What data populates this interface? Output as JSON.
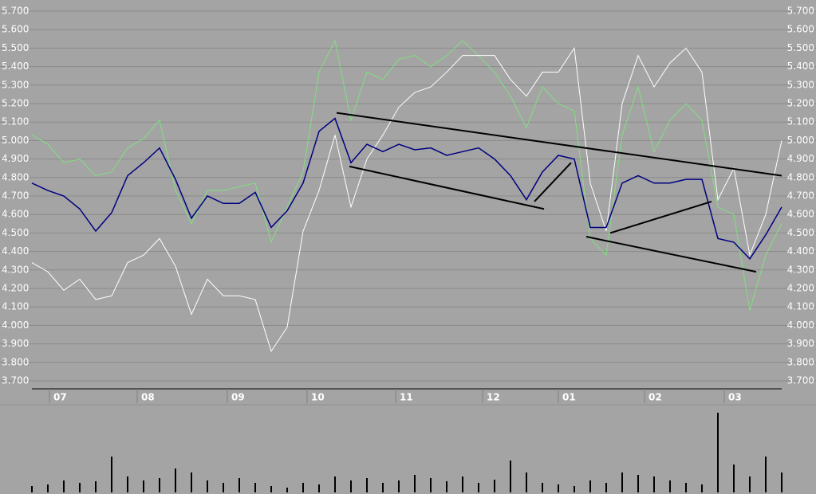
{
  "chart_data": {
    "type": "line",
    "x": [
      0,
      1,
      2,
      3,
      4,
      5,
      6,
      7,
      8,
      9,
      10,
      11,
      12,
      13,
      14,
      15,
      16,
      17,
      18,
      19,
      20,
      21,
      22,
      23,
      24,
      25,
      26,
      27,
      28,
      29,
      30,
      31,
      32,
      33,
      34,
      35,
      36,
      37,
      38,
      39,
      40,
      41,
      42,
      43,
      44,
      45,
      46,
      47
    ],
    "series": [
      {
        "color": "#80e080",
        "values": [
          5.03,
          4.98,
          4.88,
          4.9,
          4.81,
          4.83,
          4.96,
          5.01,
          5.11,
          4.73,
          4.55,
          4.73,
          4.73,
          4.75,
          4.77,
          4.45,
          4.64,
          4.83,
          5.37,
          5.54,
          5.11,
          5.37,
          5.33,
          5.44,
          5.46,
          5.4,
          5.46,
          5.54,
          5.46,
          5.37,
          5.24,
          5.07,
          5.29,
          5.2,
          5.16,
          4.47,
          4.38,
          5.03,
          5.29,
          4.94,
          5.11,
          5.2,
          5.11,
          4.64,
          4.6,
          4.08,
          4.38,
          4.55
        ]
      },
      {
        "color": "#ffffff",
        "values": [
          4.34,
          4.29,
          4.19,
          4.25,
          4.14,
          4.16,
          4.34,
          4.38,
          4.47,
          4.32,
          4.06,
          4.25,
          4.16,
          4.16,
          4.14,
          3.86,
          3.99,
          4.51,
          4.73,
          5.03,
          4.64,
          4.9,
          5.03,
          5.18,
          5.26,
          5.29,
          5.37,
          5.46,
          5.46,
          5.46,
          5.33,
          5.24,
          5.37,
          5.37,
          5.5,
          4.77,
          4.51,
          5.2,
          5.46,
          5.29,
          5.42,
          5.5,
          5.37,
          4.68,
          4.85,
          4.38,
          4.6,
          5.0
        ]
      },
      {
        "color": "#000080",
        "values": [
          4.77,
          4.73,
          4.7,
          4.63,
          4.51,
          4.61,
          4.81,
          4.88,
          4.96,
          4.79,
          4.58,
          4.7,
          4.66,
          4.66,
          4.72,
          4.53,
          4.62,
          4.77,
          5.05,
          5.12,
          4.88,
          4.98,
          4.94,
          4.98,
          4.95,
          4.96,
          4.92,
          4.94,
          4.96,
          4.9,
          4.81,
          4.68,
          4.83,
          4.92,
          4.9,
          4.53,
          4.53,
          4.77,
          4.81,
          4.77,
          4.77,
          4.79,
          4.79,
          4.47,
          4.45,
          4.36,
          4.49,
          4.64
        ]
      }
    ],
    "volume": {
      "color": "#000000",
      "values": [
        8,
        10,
        15,
        12,
        14,
        45,
        20,
        15,
        18,
        30,
        25,
        15,
        12,
        18,
        12,
        8,
        6,
        12,
        10,
        20,
        15,
        18,
        12,
        15,
        22,
        18,
        14,
        20,
        12,
        16,
        40,
        25,
        12,
        10,
        8,
        15,
        12,
        25,
        22,
        20,
        15,
        12,
        10,
        100,
        35,
        20,
        45,
        25
      ]
    },
    "trendlines": [
      {
        "x": [
          19.1,
          47
        ],
        "y": [
          5.15,
          4.81
        ]
      },
      {
        "x": [
          19.9,
          32.1
        ],
        "y": [
          4.86,
          4.63
        ]
      },
      {
        "x": [
          31.5,
          33.8
        ],
        "y": [
          4.67,
          4.88
        ]
      },
      {
        "x": [
          34.75,
          45.4
        ],
        "y": [
          4.48,
          4.29
        ]
      },
      {
        "x": [
          36.25,
          42.6
        ],
        "y": [
          4.5,
          4.67
        ]
      }
    ],
    "xlim": [
      0,
      47
    ],
    "xticks": [
      {
        "value": 1.1,
        "label": "07"
      },
      {
        "value": 6.6,
        "label": "08"
      },
      {
        "value": 12.25,
        "label": "09"
      },
      {
        "value": 17.25,
        "label": "10"
      },
      {
        "value": 22.8,
        "label": "11"
      },
      {
        "value": 28.25,
        "label": "12"
      },
      {
        "value": 33,
        "label": "01"
      },
      {
        "value": 38.4,
        "label": "02"
      },
      {
        "value": 43.4,
        "label": "03"
      }
    ],
    "ylim": [
      3.7,
      5.7
    ],
    "yticks": [
      {
        "value": 5.7,
        "label": "5.700"
      },
      {
        "value": 5.6,
        "label": "5.600"
      },
      {
        "value": 5.5,
        "label": "5.500"
      },
      {
        "value": 5.4,
        "label": "5.400"
      },
      {
        "value": 5.3,
        "label": "5.300"
      },
      {
        "value": 5.2,
        "label": "5.200"
      },
      {
        "value": 5.1,
        "label": "5.100"
      },
      {
        "value": 5.0,
        "label": "5.000"
      },
      {
        "value": 4.9,
        "label": "4.900"
      },
      {
        "value": 4.8,
        "label": "4.800"
      },
      {
        "value": 4.7,
        "label": "4.700"
      },
      {
        "value": 4.6,
        "label": "4.600"
      },
      {
        "value": 4.5,
        "label": "4.500"
      },
      {
        "value": 4.4,
        "label": "4.400"
      },
      {
        "value": 4.3,
        "label": "4.300"
      },
      {
        "value": 4.2,
        "label": "4.200"
      },
      {
        "value": 4.1,
        "label": "4.100"
      },
      {
        "value": 4.0,
        "label": "4.000"
      },
      {
        "value": 3.9,
        "label": "3.900"
      },
      {
        "value": 3.8,
        "label": "3.800"
      },
      {
        "value": 3.7,
        "label": "3.700"
      }
    ],
    "grid": true
  }
}
